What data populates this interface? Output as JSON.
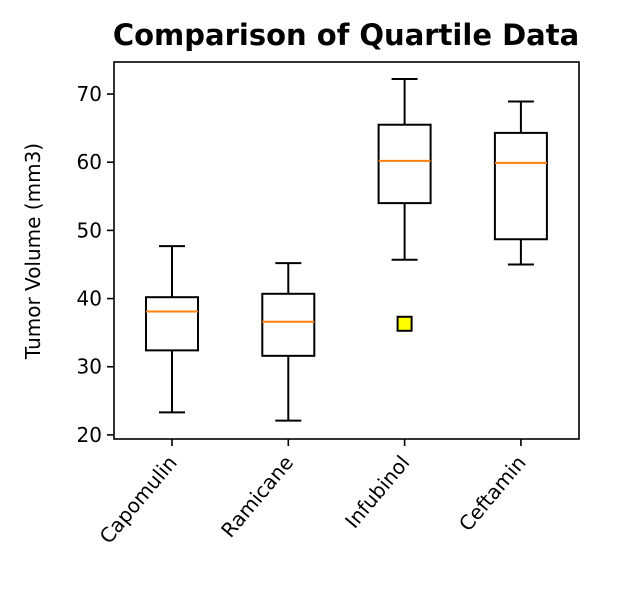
{
  "chart_data": {
    "type": "box",
    "title": "Comparison of Quartile Data",
    "xlabel": "",
    "ylabel": "Tumor Volume (mm3)",
    "ylim": [
      19.4,
      74.7
    ],
    "yticks": [
      20,
      30,
      40,
      50,
      60,
      70
    ],
    "grid": false,
    "categories": [
      "Capomulin",
      "Ramicane",
      "Infubinol",
      "Ceftamin"
    ],
    "boxes": [
      {
        "category": "Capomulin",
        "whisker_low": 23.3,
        "q1": 32.4,
        "median": 38.1,
        "q3": 40.2,
        "whisker_high": 47.7,
        "outliers": []
      },
      {
        "category": "Ramicane",
        "whisker_low": 22.1,
        "q1": 31.6,
        "median": 36.6,
        "q3": 40.7,
        "whisker_high": 45.2,
        "outliers": []
      },
      {
        "category": "Infubinol",
        "whisker_low": 45.7,
        "q1": 54.0,
        "median": 60.2,
        "q3": 65.5,
        "whisker_high": 72.2,
        "outliers": [
          36.3
        ]
      },
      {
        "category": "Ceftamin",
        "whisker_low": 45.0,
        "q1": 48.7,
        "median": 59.9,
        "q3": 64.3,
        "whisker_high": 68.9,
        "outliers": []
      }
    ],
    "colors": {
      "box": "#000000",
      "median": "#ff7f0e",
      "outlier_fill": "#ffff00",
      "outlier_edge": "#000000"
    }
  }
}
